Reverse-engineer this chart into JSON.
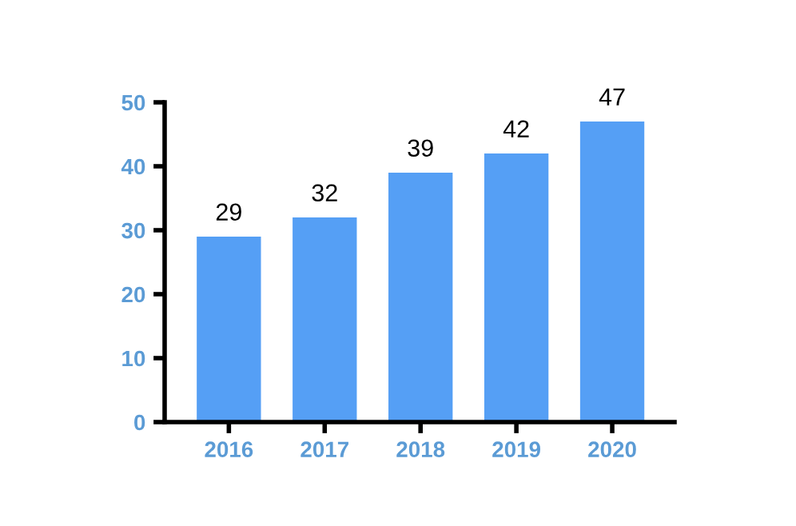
{
  "chart_data": {
    "type": "bar",
    "categories": [
      "2016",
      "2017",
      "2018",
      "2019",
      "2020"
    ],
    "values": [
      29,
      32,
      39,
      42,
      47
    ],
    "color": "#559ff5",
    "ylim": [
      0,
      50
    ],
    "yticks": [
      0,
      10,
      20,
      30,
      40,
      50
    ],
    "data_labels": true,
    "grid": false,
    "legend": false
  }
}
